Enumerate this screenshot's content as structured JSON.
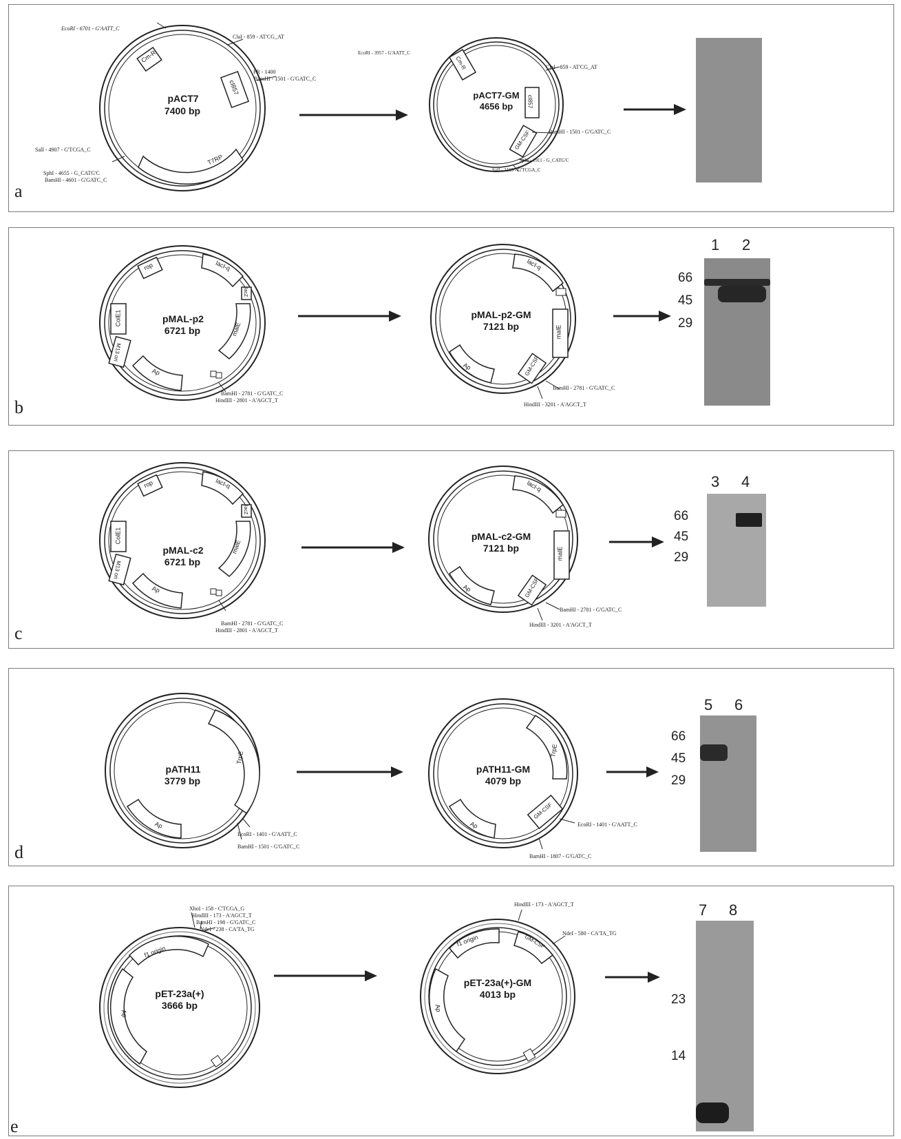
{
  "panels": [
    {
      "label": "a",
      "left": {
        "name": "pACT7",
        "size": "7400 bp",
        "segments": [
          "Cm-R",
          "cI857",
          "T7RP"
        ],
        "sites": [
          "EcoRI - 6701 - G'AATT_C",
          "ClaI - 859 - AT'CG_AT",
          "PR - 1400",
          "BamHI - 1501 - G'GATC_C",
          "SalI - 4907 - G'TCGA_C",
          "SphI - 4655 - G_CATG'C",
          "BamHI - 4601 - G'GATC_C"
        ]
      },
      "right": {
        "name": "pACT7-GM",
        "size": "4656 bp",
        "segments": [
          "Cm-R",
          "cI857",
          "GM-CSF"
        ],
        "sites": [
          "EcoRI - 3957 - G'AATT_C",
          "ClaI - 859 - AT'CG_AT",
          "BamHI - 1501 - G'GATC_C",
          "SphI - 1911 - G_CATG'C",
          "SalI - 2163 - G'TCGA_C"
        ]
      },
      "lanes": [],
      "markers": []
    },
    {
      "label": "b",
      "left": {
        "name": "pMAL-p2",
        "size": "6721 bp",
        "segments": [
          "rop",
          "lacI-q",
          "ColE1",
          "M13 ori",
          "Ap",
          "malE",
          "lacZ"
        ],
        "sites": [
          "BamHI - 2781 - G'GATC_C",
          "HindIII - 2801 - A'AGCT_T"
        ]
      },
      "right": {
        "name": "pMAL-p2-GM",
        "size": "7121 bp",
        "segments": [
          "lacI-q",
          "malE",
          "GM-CSF",
          "Ap"
        ],
        "sites": [
          "BamHI - 2781 - G'GATC_C",
          "HindIII - 3201 - A'AGCT_T"
        ]
      },
      "lanes": [
        "1",
        "2"
      ],
      "markers": [
        "66",
        "45",
        "29"
      ]
    },
    {
      "label": "c",
      "left": {
        "name": "pMAL-c2",
        "size": "6721 bp",
        "segments": [
          "rop",
          "lacI-q",
          "ColE1",
          "M13 ori",
          "Ap",
          "malE",
          "lacZ"
        ],
        "sites": [
          "BamHI - 2781 - G'GATC_C",
          "HindIII - 2801 - A'AGCT_T"
        ]
      },
      "right": {
        "name": "pMAL-c2-GM",
        "size": "7121 bp",
        "segments": [
          "lacI-q",
          "malE",
          "GM-CSF",
          "Ap"
        ],
        "sites": [
          "BamHI - 2781 - G'GATC_C",
          "HindIII - 3201 - A'AGCT_T"
        ]
      },
      "lanes": [
        "3",
        "4"
      ],
      "markers": [
        "66",
        "45",
        "29"
      ]
    },
    {
      "label": "d",
      "left": {
        "name": "pATH11",
        "size": "3779 bp",
        "segments": [
          "TrpE",
          "Ap"
        ],
        "sites": [
          "EcoRI - 1401 - G'AATT_C",
          "BamHI - 1501 - G'GATC_C"
        ]
      },
      "right": {
        "name": "pATH11-GM",
        "size": "4079 bp",
        "segments": [
          "TrpE",
          "GM-CSF",
          "Ap"
        ],
        "sites": [
          "EcoRI - 1401 - G'AATT_C",
          "BamHI - 1807 - G'GATC_C"
        ]
      },
      "lanes": [
        "5",
        "6"
      ],
      "markers": [
        "66",
        "45",
        "29"
      ]
    },
    {
      "label": "e",
      "left": {
        "name": "pET-23a(+)",
        "size": "3666 bp",
        "segments": [
          "f1 origin",
          "Ap"
        ],
        "sites": [
          "XhoI - 158 - C'TCGA_G",
          "HindIII - 173 - A'AGCT_T",
          "BamHI - 198 - G'GATC_C",
          "NdeI - 238 - CA'TA_TG"
        ]
      },
      "right": {
        "name": "pET-23a(+)-GM",
        "size": "4013 bp",
        "segments": [
          "f1 origin",
          "GM-CSF",
          "Ap"
        ],
        "sites": [
          "HindIII - 173 - A'AGCT_T",
          "NdeI - 580 - CA'TA_TG"
        ]
      },
      "lanes": [
        "7",
        "8"
      ],
      "markers": [
        "23",
        "14"
      ]
    }
  ],
  "colors": {
    "ink": "#1a1a1a",
    "gel": "#8f8f8f",
    "band": "#2a2a2a",
    "border": "#7a7a7a"
  }
}
